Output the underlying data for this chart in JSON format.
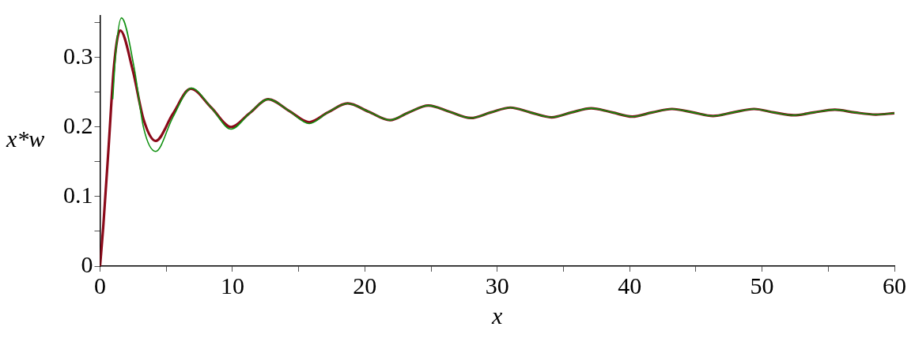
{
  "chart_data": {
    "type": "line",
    "xlabel": "x",
    "ylabel": "x*w",
    "xlim": [
      0,
      60
    ],
    "ylim": [
      0,
      0.36
    ],
    "xticks": [
      0,
      {
        "value": 5,
        "label": null
      },
      10,
      {
        "value": 15,
        "label": null
      },
      20,
      {
        "value": 25,
        "label": null
      },
      30,
      {
        "value": 35,
        "label": null
      },
      40,
      {
        "value": 45,
        "label": null
      },
      50,
      {
        "value": 55,
        "label": null
      },
      60
    ],
    "yticks": [
      0,
      {
        "value": 0.05,
        "label": null
      },
      0.1,
      {
        "value": 0.15,
        "label": null
      },
      0.2,
      {
        "value": 0.25,
        "label": null
      },
      0.3,
      {
        "value": 0.35,
        "label": null
      }
    ],
    "grid": false,
    "legend": false,
    "marker": "none",
    "line_style": "solid",
    "series": [
      {
        "color": "#8b0a1a",
        "x": [
          0,
          0.24,
          0.65,
          1.06,
          1.52,
          2.48,
          3.3,
          4.2,
          5.5,
          6.85,
          8.4,
          9.9,
          11.3,
          12.7,
          14.3,
          15.8,
          17.2,
          18.7,
          20.3,
          21.9,
          23.3,
          24.8,
          26.4,
          28,
          29.5,
          31,
          32.5,
          34.1,
          35.6,
          37.1,
          38.7,
          40.2,
          41.7,
          43.2,
          44.8,
          46.3,
          47.8,
          49.4,
          50.9,
          52.4,
          53.9,
          55.5,
          57,
          58.6,
          60
        ],
        "values": [
          0,
          0.056,
          0.172,
          0.289,
          0.339,
          0.281,
          0.21,
          0.18,
          0.219,
          0.255,
          0.228,
          0.2,
          0.22,
          0.24,
          0.223,
          0.207,
          0.221,
          0.234,
          0.222,
          0.21,
          0.221,
          0.231,
          0.222,
          0.213,
          0.221,
          0.228,
          0.221,
          0.214,
          0.221,
          0.227,
          0.221,
          0.215,
          0.221,
          0.226,
          0.221,
          0.216,
          0.221,
          0.226,
          0.221,
          0.217,
          0.221,
          0.225,
          0.221,
          0.218,
          0.22
        ]
      },
      {
        "color": "#109010",
        "x": [
          0.96,
          1.2,
          1.62,
          2.58,
          3.3,
          4.2,
          5.5,
          6.9,
          8.4,
          9.9,
          11.3,
          12.7,
          14.3,
          15.8,
          17.2,
          18.7,
          20.3,
          21.9,
          23.3,
          24.8,
          26.4,
          28,
          29.5,
          31,
          32.5,
          34.1,
          35.6,
          37.1,
          38.7,
          40.2,
          41.7,
          43.2,
          44.8,
          46.3,
          47.8,
          49.4,
          50.9,
          52.4,
          53.9,
          55.5,
          57,
          58.6,
          60
        ],
        "values": [
          0.24,
          0.31,
          0.357,
          0.285,
          0.198,
          0.165,
          0.214,
          0.256,
          0.228,
          0.197,
          0.22,
          0.24,
          0.223,
          0.205,
          0.221,
          0.234,
          0.222,
          0.21,
          0.221,
          0.231,
          0.222,
          0.213,
          0.221,
          0.228,
          0.221,
          0.214,
          0.221,
          0.227,
          0.221,
          0.215,
          0.221,
          0.226,
          0.221,
          0.216,
          0.221,
          0.226,
          0.221,
          0.217,
          0.221,
          0.225,
          0.221,
          0.218,
          0.22
        ]
      }
    ]
  }
}
